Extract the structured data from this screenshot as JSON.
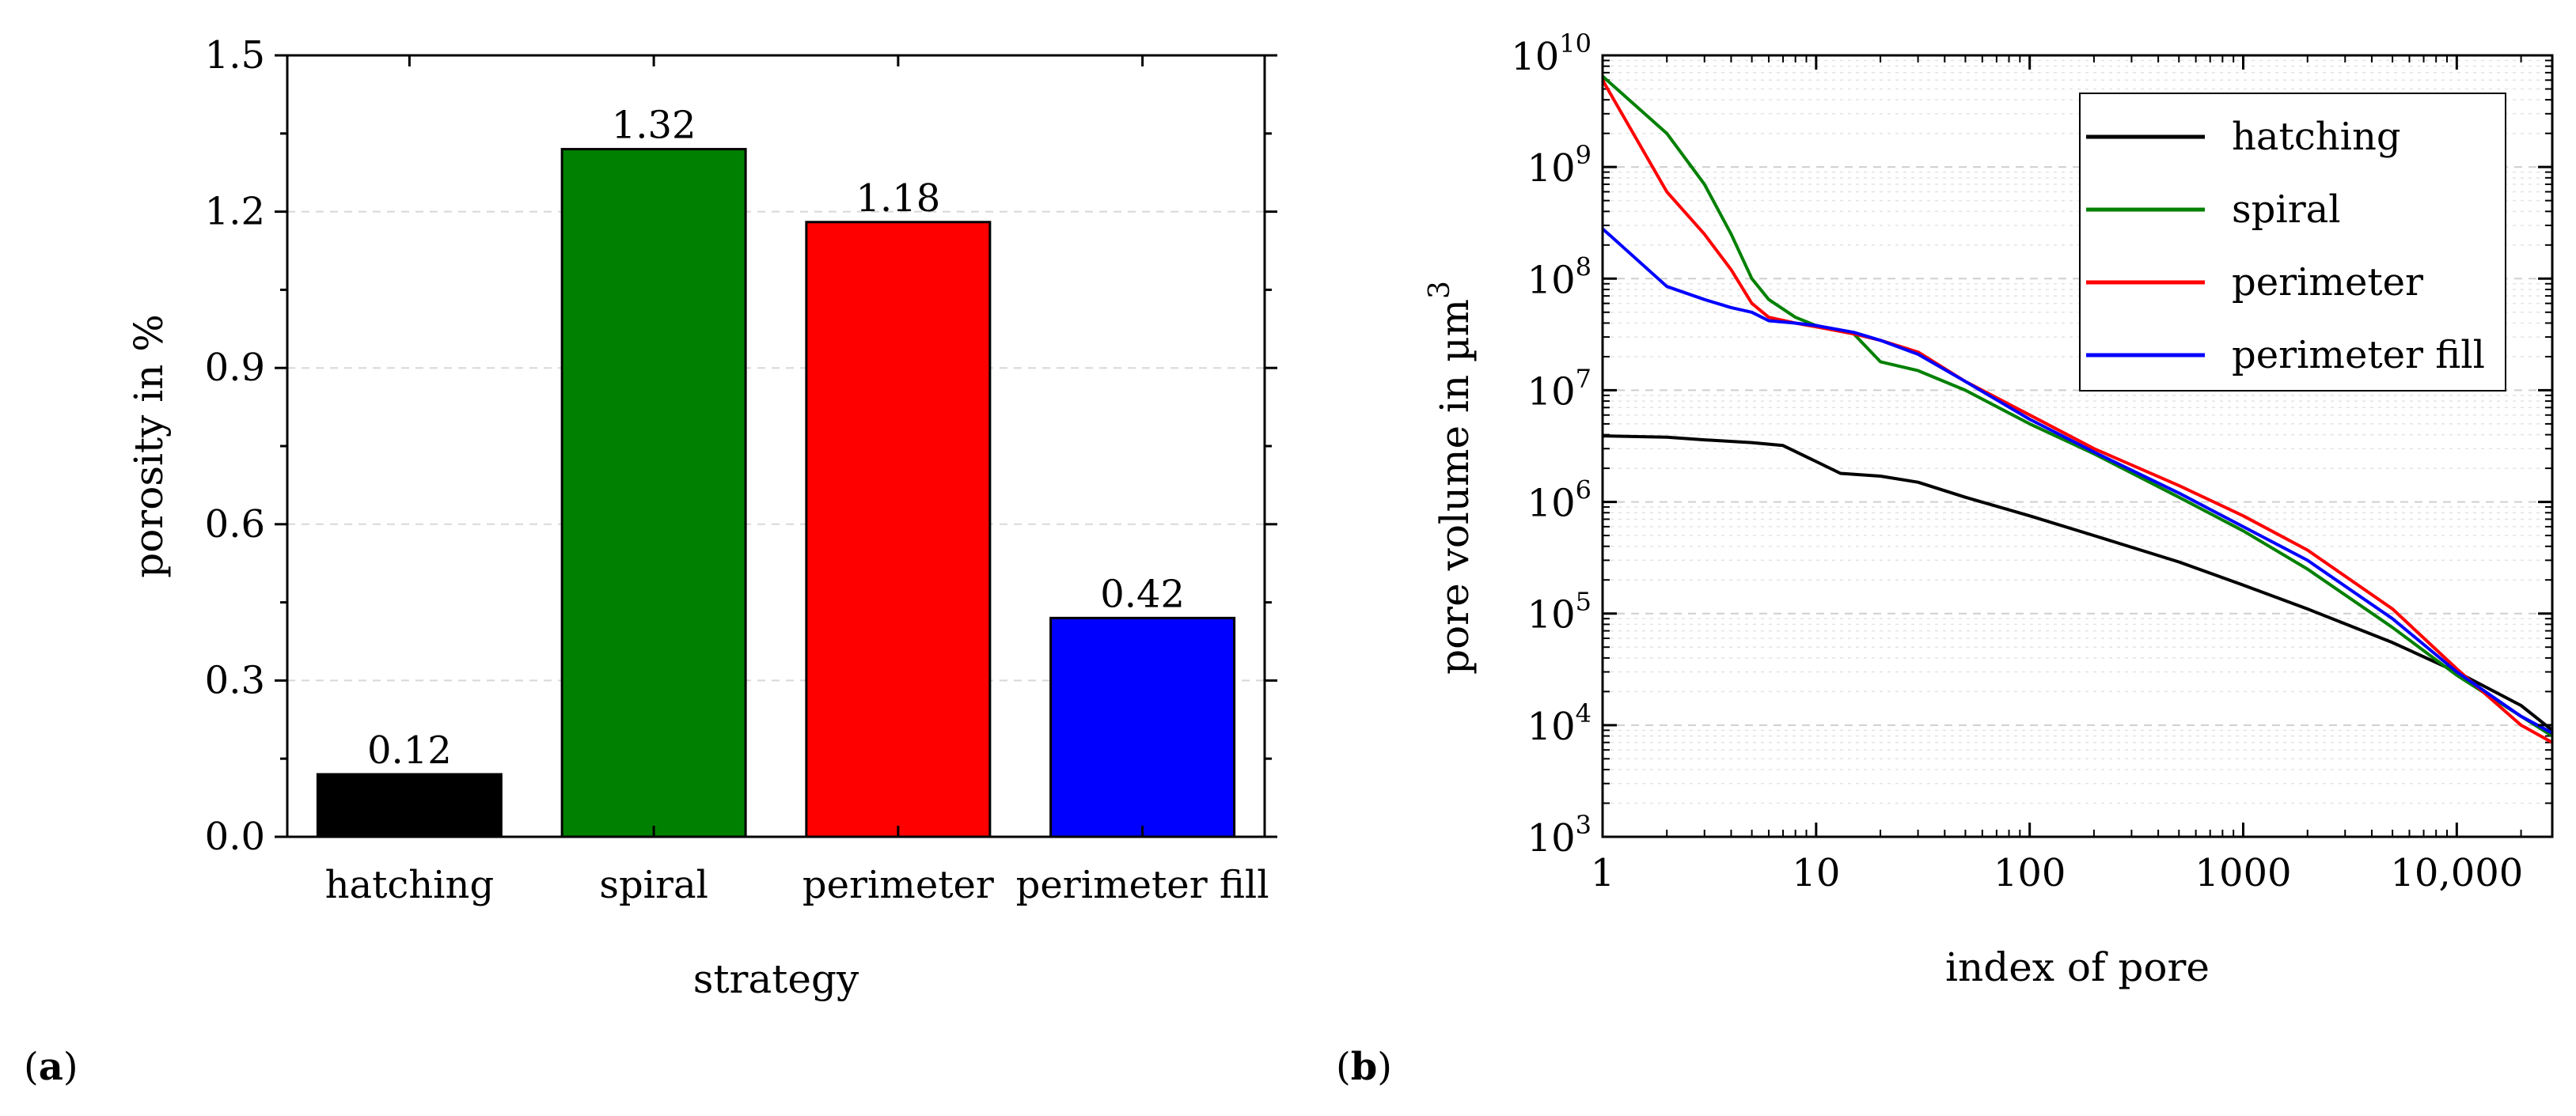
{
  "chart_data": [
    {
      "panel": "(a)",
      "type": "bar",
      "categories": [
        "hatching",
        "spiral",
        "perimeter",
        "perimeter fill"
      ],
      "values": [
        0.12,
        1.32,
        1.18,
        0.42
      ],
      "value_labels": [
        "0.12",
        "1.32",
        "1.18",
        "0.42"
      ],
      "colors": [
        "#000000",
        "#008000",
        "#ff0000",
        "#0000ff"
      ],
      "title": "",
      "xlabel": "strategy",
      "ylabel": "porosity in %",
      "ylim": [
        0,
        1.5
      ],
      "yticks": [
        0.0,
        0.3,
        0.6,
        0.9,
        1.2,
        1.5
      ],
      "ytick_labels": [
        "0.0",
        "0.3",
        "0.6",
        "0.9",
        "1.2",
        "1.5"
      ],
      "grid": true
    },
    {
      "panel": "(b)",
      "type": "line",
      "xscale": "log",
      "yscale": "log",
      "xlabel": "index of pore",
      "ylabel": "pore volume in µm",
      "ylabel_superscript": "3",
      "xlim": [
        1,
        28000
      ],
      "ylim": [
        1000,
        10000000000
      ],
      "xticks": [
        1,
        10,
        100,
        1000,
        10000
      ],
      "xtick_labels": [
        "1",
        "10",
        "100",
        "1000",
        "10,000"
      ],
      "yticks": [
        1000,
        10000,
        100000,
        1000000,
        10000000,
        100000000,
        1000000000,
        10000000000
      ],
      "ytick_base": "10",
      "ytick_exponents": [
        "3",
        "4",
        "5",
        "6",
        "7",
        "8",
        "9",
        "10"
      ],
      "legend_position": "top-right",
      "grid": true,
      "series": [
        {
          "name": "hatching",
          "color": "#000000",
          "x": [
            1,
            2,
            3,
            5,
            7,
            10,
            13,
            20,
            30,
            50,
            100,
            200,
            500,
            1000,
            2000,
            5000,
            10000,
            20000,
            28000
          ],
          "y": [
            3900000,
            3800000,
            3600000,
            3400000,
            3200000,
            2300000,
            1800000,
            1700000,
            1500000,
            1100000,
            750000,
            500000,
            290000,
            180000,
            110000,
            55000,
            30000,
            15000,
            9000
          ]
        },
        {
          "name": "spiral",
          "color": "#008000",
          "x": [
            1,
            2,
            3,
            4,
            5,
            6,
            8,
            10,
            15,
            20,
            30,
            50,
            100,
            200,
            500,
            1000,
            2000,
            5000,
            10000,
            20000,
            28000
          ],
          "y": [
            6500000000,
            2000000000,
            700000000,
            250000000,
            100000000,
            65000000,
            45000000,
            38000000,
            32000000,
            18000000,
            15000000,
            10000000,
            5000000,
            2700000,
            1100000,
            550000,
            250000,
            75000,
            28000,
            12000,
            8000
          ]
        },
        {
          "name": "perimeter",
          "color": "#ff0000",
          "x": [
            1,
            2,
            3,
            4,
            5,
            6,
            8,
            10,
            15,
            20,
            30,
            50,
            100,
            200,
            500,
            1000,
            2000,
            5000,
            10000,
            20000,
            28000
          ],
          "y": [
            6000000000,
            600000000,
            250000000,
            120000000,
            60000000,
            45000000,
            40000000,
            37000000,
            32000000,
            28000000,
            22000000,
            12000000,
            6000000,
            3000000,
            1400000,
            750000,
            370000,
            110000,
            32000,
            10000,
            7000
          ]
        },
        {
          "name": "perimeter fill",
          "color": "#0000ff",
          "x": [
            1,
            2,
            3,
            4,
            5,
            6,
            8,
            10,
            15,
            20,
            30,
            50,
            100,
            200,
            500,
            1000,
            2000,
            5000,
            10000,
            20000,
            28000
          ],
          "y": [
            280000000,
            85000000,
            65000000,
            55000000,
            50000000,
            42000000,
            40000000,
            38000000,
            33000000,
            28000000,
            21000000,
            12000000,
            5500000,
            2800000,
            1200000,
            600000,
            300000,
            90000,
            30000,
            12000,
            8500
          ]
        }
      ]
    }
  ],
  "panel_labels": [
    "a",
    "b"
  ]
}
